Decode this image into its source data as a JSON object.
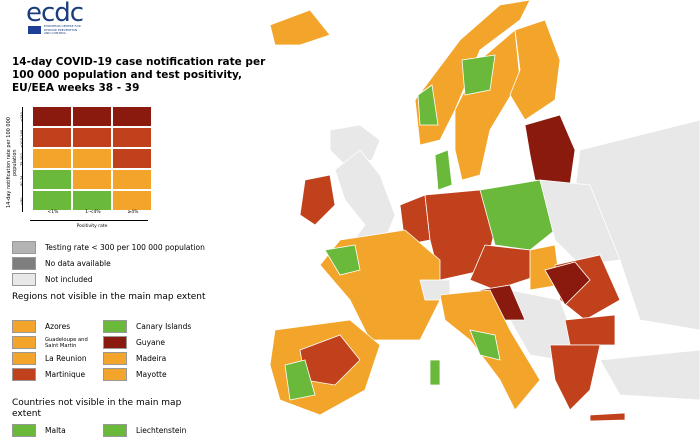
{
  "logo": {
    "text": "ecdc",
    "subtitle": "EUROPEAN CENTRE FOR DISEASE PREVENTION AND CONTROL"
  },
  "title": "14-day COVID-19 case notification rate per 100 000 population and test positivity, EU/EEA weeks 38 - 39",
  "colors": {
    "dark_red": "#8b1a0e",
    "red": "#c0411c",
    "orange": "#f2a52a",
    "green": "#6bb93a",
    "grey_testing": "#b4b4b4",
    "grey_nodata": "#7e7e7e",
    "not_included": "#e8e8e8"
  },
  "matrix": {
    "y_label": "14-day notification rate per 100 000 population",
    "y_ticks": [
      "≥150",
      "≥100-149",
      "75-100",
      "50-74",
      "<50"
    ],
    "x_label": "Positivity rate",
    "x_ticks": [
      "<1%",
      "1-<4%",
      "≥4%"
    ],
    "cells": [
      [
        "dark_red",
        "dark_red",
        "dark_red"
      ],
      [
        "red",
        "red",
        "red"
      ],
      [
        "orange",
        "orange",
        "red"
      ],
      [
        "green",
        "orange",
        "orange"
      ],
      [
        "green",
        "green",
        "orange"
      ]
    ]
  },
  "legend": [
    {
      "label": "Testing rate < 300 per 100 000 population",
      "color": "grey_testing"
    },
    {
      "label": "No data available",
      "color": "grey_nodata"
    },
    {
      "label": "Not included",
      "color": "not_included"
    }
  ],
  "regions": {
    "heading": "Regions not visible in the main map extent",
    "items": [
      {
        "label": "Azores",
        "color": "orange"
      },
      {
        "label": "Guadeloupe and Saint Martin",
        "color": "orange"
      },
      {
        "label": "La Reunion",
        "color": "orange"
      },
      {
        "label": "Martinique",
        "color": "red"
      },
      {
        "label": "Canary Islands",
        "color": "green"
      },
      {
        "label": "Guyane",
        "color": "dark_red"
      },
      {
        "label": "Madeira",
        "color": "orange"
      },
      {
        "label": "Mayotte",
        "color": "orange"
      }
    ]
  },
  "countries": {
    "heading": "Countries not visible in the main map extent",
    "items": [
      {
        "label": "Malta",
        "color": "green"
      },
      {
        "label": "Liechtenstein",
        "color": "green"
      }
    ]
  }
}
